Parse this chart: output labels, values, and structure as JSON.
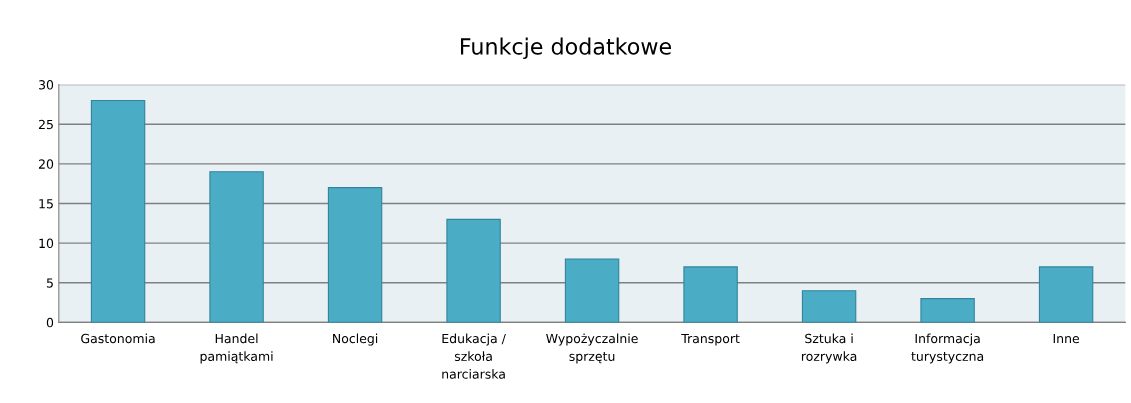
{
  "chart_data": {
    "type": "bar",
    "title": "Funkcje dodatkowe",
    "categories": [
      "Gastonomia",
      "Handel\npamiątkami",
      "Noclegi",
      "Edukacja /\nszkoła\nnarciarska",
      "Wypożyczalnie\nsprzętu",
      "Transport",
      "Sztuka i\nrozrywka",
      "Informacja\nturystyczna",
      "Inne"
    ],
    "values": [
      28,
      19,
      17,
      13,
      8,
      7,
      4,
      3,
      7
    ],
    "color": "#4bacc6",
    "ylim": [
      0,
      30
    ],
    "yticks": [
      0,
      5,
      10,
      15,
      20,
      25,
      30
    ],
    "grid": "y"
  }
}
